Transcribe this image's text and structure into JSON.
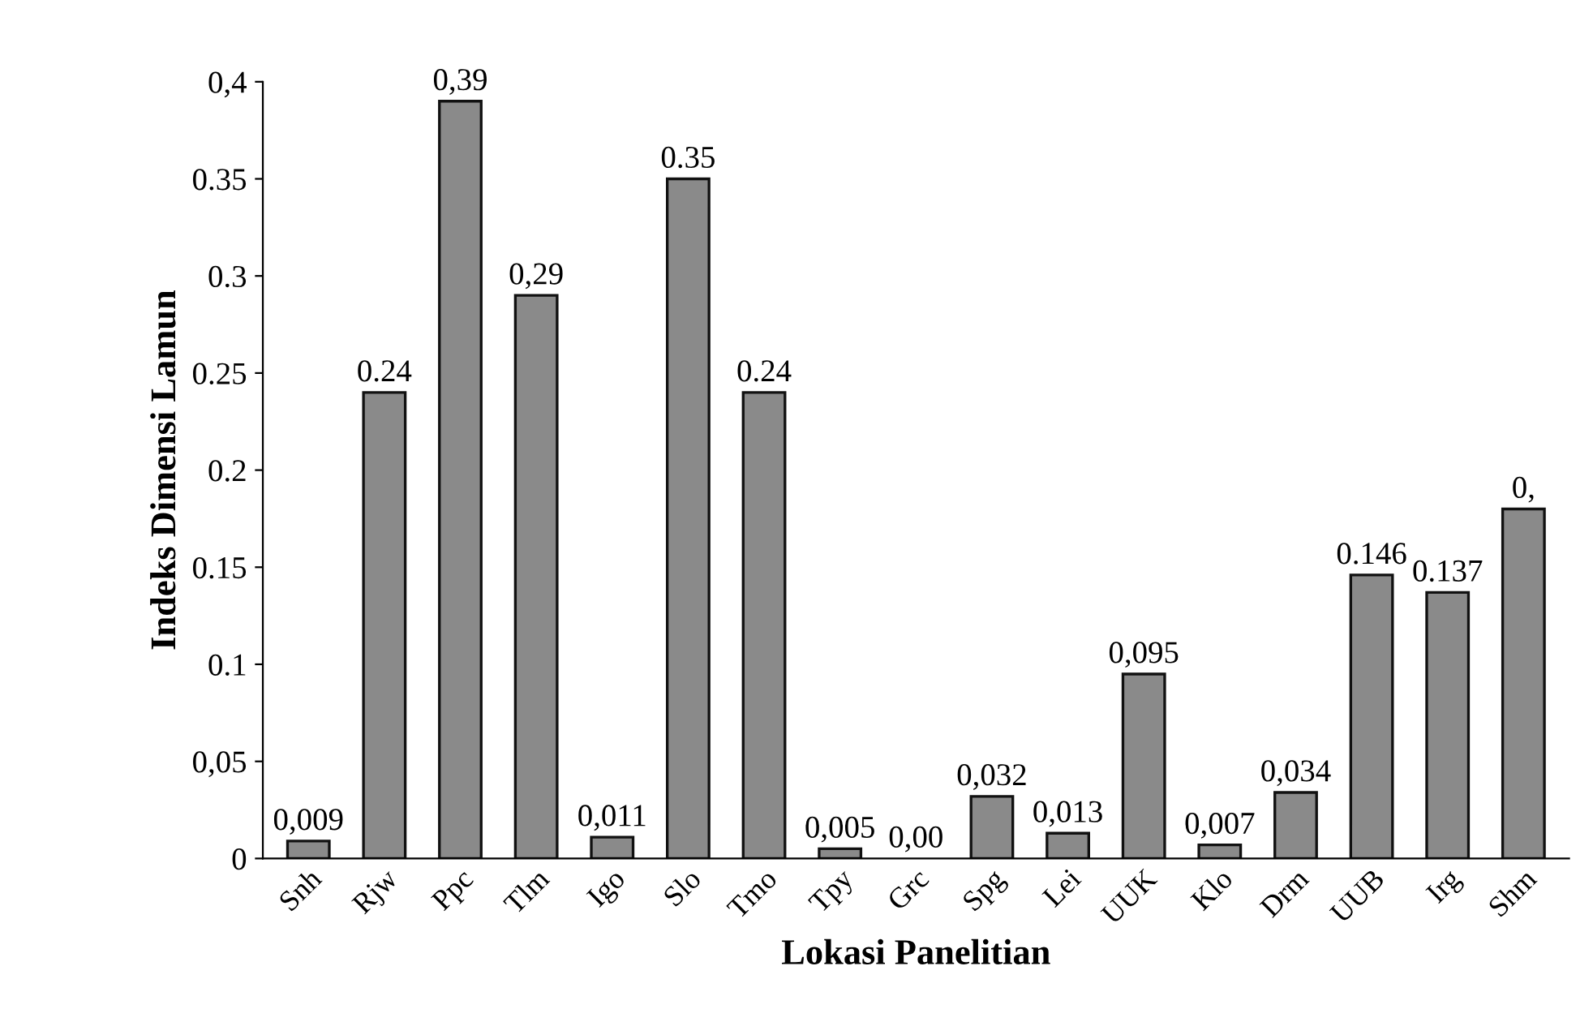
{
  "chart_data": {
    "type": "bar",
    "xlabel": "Lokasi Panelitian",
    "ylabel": "Indeks Dimensi Lamun",
    "categories": [
      "Snh",
      "Rjw",
      "Ppc",
      "Tlm",
      "Igo",
      "Slo",
      "Tmo",
      "Tpy",
      "Grc",
      "Spg",
      "Lei",
      "UUK",
      "Klo",
      "Drm",
      "UUB",
      "Irg",
      "Shm"
    ],
    "values": [
      0.009,
      0.24,
      0.39,
      0.29,
      0.011,
      0.35,
      0.24,
      0.005,
      0.0,
      0.032,
      0.013,
      0.095,
      0.007,
      0.034,
      0.146,
      0.137,
      0.18
    ],
    "value_labels": [
      "0,009",
      "0.24",
      "0,39",
      "0,29",
      "0,011",
      "0.35",
      "0.24",
      "0,005",
      "0,00",
      "0,032",
      "0,013",
      "0,095",
      "0,007",
      "0,034",
      "0.146",
      "0.137",
      "0,"
    ],
    "color": "#8a8a8a",
    "ylim": [
      0,
      0.4
    ],
    "yticks": [
      0,
      {
        "value": 0.05,
        "label": "0,05"
      },
      {
        "value": 0.1,
        "label": "0.1"
      },
      {
        "value": 0.15,
        "label": "0.15"
      },
      {
        "value": 0.2,
        "label": "0.2"
      },
      {
        "value": 0.25,
        "label": "0.25"
      },
      {
        "value": 0.3,
        "label": "0.3"
      },
      {
        "value": 0.35,
        "label": "0.35"
      },
      {
        "value": 0.4,
        "label": "0,4"
      }
    ],
    "grid": false
  }
}
